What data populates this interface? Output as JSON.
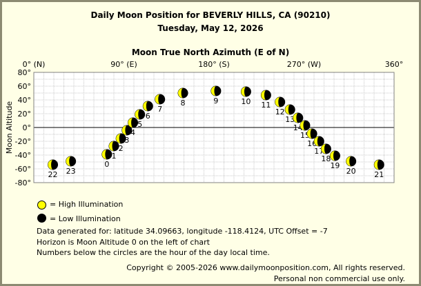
{
  "header": {
    "title": "Daily Moon Position for BEVERLY HILLS, CA (90210)",
    "date": "Tuesday, May 12, 2026"
  },
  "legend": {
    "high": "= High Illumination",
    "low": "= Low Illumination"
  },
  "colors": {
    "high": "#ffff00",
    "low": "#000000",
    "background": "#ffffe6",
    "grid": "#c8c8c8",
    "frame": "#8c8a72"
  },
  "info": {
    "line1": "Data generated for: latitude 34.09663, longitude -118.4124, UTC Offset = -7",
    "line2": "Horizon is Moon Altitude 0 on the left of chart",
    "line3": "Numbers below the circles are the hour of the day local time."
  },
  "copyright": {
    "line1": "Copyright © 2005-2026 www.dailymoonposition.com, All rights reserved.",
    "line2": "Personal non commercial use only."
  },
  "chart_data": {
    "type": "scatter",
    "title": "Daily Moon Position for BEVERLY HILLS, CA (90210)",
    "subtitle": "Tuesday, May 12, 2026",
    "xlabel": "Moon True North Azimuth (E of N)",
    "ylabel": "Moon Altitude",
    "xlim": [
      0,
      360
    ],
    "ylim": [
      -80,
      80
    ],
    "x_ticks": [
      {
        "value": 0,
        "label": "0° (N)"
      },
      {
        "value": 90,
        "label": "90° (E)"
      },
      {
        "value": 180,
        "label": "180° (S)"
      },
      {
        "value": 270,
        "label": "270° (W)"
      },
      {
        "value": 360,
        "label": "360°"
      }
    ],
    "y_ticks": [
      {
        "value": 80,
        "label": "80°"
      },
      {
        "value": 60,
        "label": "60°"
      },
      {
        "value": 40,
        "label": "40°"
      },
      {
        "value": 20,
        "label": "20°"
      },
      {
        "value": 0,
        "label": "0°"
      },
      {
        "value": -20,
        "label": "-20°"
      },
      {
        "value": -40,
        "label": "-40°"
      },
      {
        "value": -60,
        "label": "-60°"
      },
      {
        "value": -80,
        "label": "-80°"
      }
    ],
    "grid": true,
    "horizon_line": 0,
    "points": [
      {
        "hour": "0",
        "x": 73,
        "y": -39
      },
      {
        "hour": "1",
        "x": 80,
        "y": -27
      },
      {
        "hour": "2",
        "x": 87,
        "y": -16
      },
      {
        "hour": "3",
        "x": 93,
        "y": -4
      },
      {
        "hour": "4",
        "x": 99,
        "y": 7
      },
      {
        "hour": "5",
        "x": 106,
        "y": 19
      },
      {
        "hour": "6",
        "x": 114,
        "y": 31
      },
      {
        "hour": "7",
        "x": 126,
        "y": 41
      },
      {
        "hour": "8",
        "x": 149,
        "y": 50
      },
      {
        "hour": "9",
        "x": 182,
        "y": 53
      },
      {
        "hour": "10",
        "x": 212,
        "y": 52
      },
      {
        "hour": "11",
        "x": 232,
        "y": 47
      },
      {
        "hour": "12",
        "x": 246,
        "y": 37
      },
      {
        "hour": "13",
        "x": 256,
        "y": 26
      },
      {
        "hour": "14",
        "x": 264,
        "y": 14
      },
      {
        "hour": "15",
        "x": 271,
        "y": 3
      },
      {
        "hour": "16",
        "x": 278,
        "y": -9
      },
      {
        "hour": "17",
        "x": 285,
        "y": -20
      },
      {
        "hour": "18",
        "x": 292,
        "y": -31
      },
      {
        "hour": "19",
        "x": 301,
        "y": -41
      },
      {
        "hour": "20",
        "x": 317,
        "y": -49
      },
      {
        "hour": "21",
        "x": 345,
        "y": -54
      },
      {
        "hour": "22",
        "x": 19,
        "y": -54
      },
      {
        "hour": "23",
        "x": 37,
        "y": -49
      }
    ]
  }
}
